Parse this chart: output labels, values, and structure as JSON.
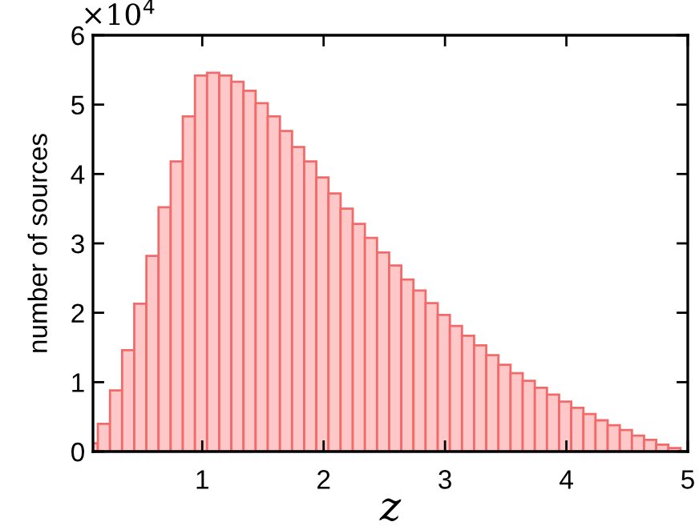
{
  "chart_data": {
    "type": "histogram",
    "xlabel": "z",
    "ylabel": "number of sources",
    "color": "#ffc8c8",
    "bins": [
      0.04,
      0.14,
      0.24,
      0.34,
      0.44,
      0.54,
      0.64,
      0.74,
      0.84,
      0.94,
      1.04,
      1.14,
      1.24,
      1.34,
      1.44,
      1.54,
      1.64,
      1.74,
      1.84,
      1.94,
      2.04,
      2.14,
      2.24,
      2.34,
      2.44,
      2.54,
      2.64,
      2.74,
      2.84,
      2.94,
      3.04,
      3.14,
      3.24,
      3.34,
      3.44,
      3.54,
      3.64,
      3.74,
      3.84,
      3.94,
      4.04,
      4.14,
      4.24,
      4.34,
      4.44,
      4.54,
      4.64,
      4.74,
      4.84,
      4.94
    ],
    "values": [
      0.12,
      0.4,
      0.88,
      1.46,
      2.13,
      2.82,
      3.52,
      4.18,
      4.83,
      5.42,
      5.46,
      5.42,
      5.33,
      5.2,
      5.02,
      4.83,
      4.62,
      4.39,
      4.18,
      3.95,
      3.72,
      3.5,
      3.28,
      3.08,
      2.87,
      2.68,
      2.48,
      2.32,
      2.14,
      1.97,
      1.81,
      1.67,
      1.53,
      1.39,
      1.25,
      1.13,
      1.02,
      0.92,
      0.82,
      0.72,
      0.63,
      0.54,
      0.45,
      0.38,
      0.31,
      0.23,
      0.17,
      0.1,
      0.05
    ],
    "xlim": [
      0.1,
      5
    ],
    "xticks": [
      1,
      2,
      3,
      4,
      5
    ],
    "ylim": [
      0,
      6
    ],
    "yticks": [
      0,
      1,
      2,
      3,
      4,
      5,
      6
    ],
    "annotations": [
      "×10$^{4}$"
    ]
  }
}
